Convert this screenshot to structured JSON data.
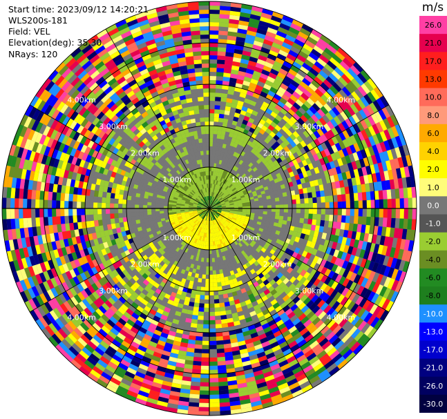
{
  "header": {
    "start_time": "Start time: 2023/09/12 14:20:21",
    "instrument": "WLS200s-181",
    "field": "Field: VEL",
    "elevation": "Elevation(deg): 35.30",
    "nrays": "NRays: 120"
  },
  "range_labels": [
    "1.00km",
    "2.00km",
    "3.00km",
    "4.00km"
  ],
  "colorbar": {
    "unit": "m/s",
    "levels": [
      "26.0",
      "21.0",
      "17.0",
      "13.0",
      "10.0",
      "8.0",
      "6.0",
      "4.0",
      "2.0",
      "1.0",
      "0.0",
      "-1.0",
      "-2.0",
      "-4.0",
      "-6.0",
      "-8.0",
      "-10.0",
      "-13.0",
      "-17.0",
      "-21.0",
      "-26.0",
      "-30.0"
    ],
    "colors": [
      "#ff3fa4",
      "#e6004e",
      "#ff1e1e",
      "#ff3a00",
      "#ff6b5a",
      "#ff9a7a",
      "#ffaa00",
      "#ffd200",
      "#fffd00",
      "#fffc7a",
      "#777777",
      "#555555",
      "#9acd32",
      "#6b8e23",
      "#228b22",
      "#1e7f1e",
      "#1e90ff",
      "#0000ff",
      "#0000cd",
      "#000080",
      "#000060",
      "#000040"
    ]
  }
}
